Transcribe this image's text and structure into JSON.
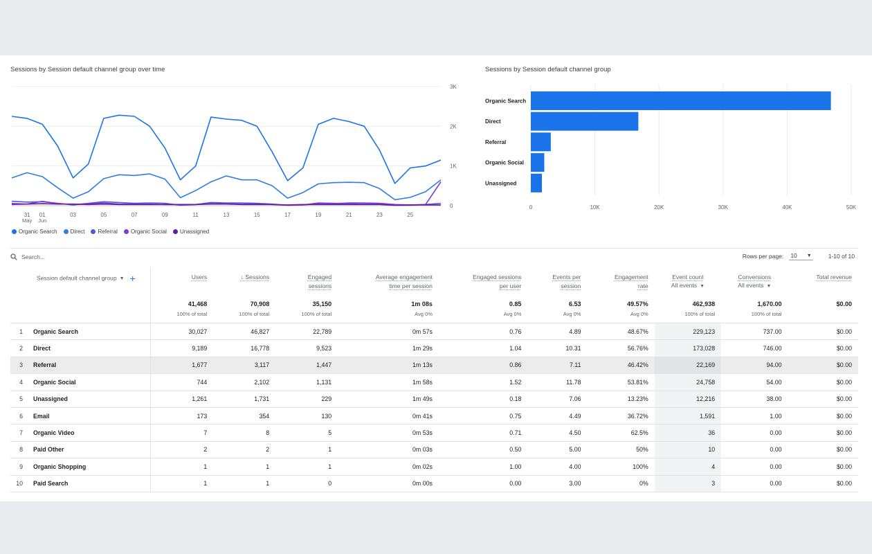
{
  "line_chart": {
    "title": "Sessions by Session default channel group over time",
    "chart_data": {
      "type": "line",
      "x": [
        "May 30",
        "May 31",
        "Jun 01",
        "Jun 02",
        "Jun 03",
        "Jun 04",
        "Jun 05",
        "Jun 06",
        "Jun 07",
        "Jun 08",
        "Jun 09",
        "Jun 10",
        "Jun 11",
        "Jun 12",
        "Jun 13",
        "Jun 14",
        "Jun 15",
        "Jun 16",
        "Jun 17",
        "Jun 18",
        "Jun 19",
        "Jun 20",
        "Jun 21",
        "Jun 22",
        "Jun 23",
        "Jun 24",
        "Jun 25",
        "Jun 26",
        "Jun 27"
      ],
      "x_ticks": [
        {
          "label": "31",
          "sub": "May"
        },
        {
          "label": "01",
          "sub": "Jun"
        },
        {
          "label": "03"
        },
        {
          "label": "05"
        },
        {
          "label": "07"
        },
        {
          "label": "09"
        },
        {
          "label": "11"
        },
        {
          "label": "13"
        },
        {
          "label": "15"
        },
        {
          "label": "17"
        },
        {
          "label": "19"
        },
        {
          "label": "21"
        },
        {
          "label": "23"
        },
        {
          "label": "25"
        }
      ],
      "ylim": [
        0,
        3000
      ],
      "y_ticks": [
        "0",
        "1K",
        "2K",
        "3K"
      ],
      "series": [
        {
          "name": "Organic Search",
          "color": "#1a73e8",
          "values": [
            2250,
            2200,
            2050,
            1500,
            700,
            1050,
            2200,
            2280,
            2250,
            2000,
            1450,
            650,
            1000,
            2230,
            2180,
            2150,
            2000,
            1350,
            630,
            950,
            2050,
            2200,
            2120,
            2000,
            1400,
            560,
            950,
            1000,
            1150
          ]
        },
        {
          "name": "Direct",
          "color": "#2e7ce6",
          "values": [
            700,
            830,
            730,
            450,
            190,
            350,
            680,
            780,
            760,
            800,
            670,
            200,
            380,
            600,
            750,
            650,
            650,
            500,
            190,
            330,
            550,
            580,
            590,
            580,
            430,
            150,
            210,
            350,
            650
          ]
        },
        {
          "name": "Referral",
          "color": "#4d5bdb",
          "values": [
            110,
            90,
            100,
            60,
            20,
            60,
            100,
            80,
            60,
            70,
            60,
            10,
            30,
            80,
            70,
            70,
            60,
            40,
            10,
            20,
            70,
            60,
            50,
            40,
            40,
            10,
            10,
            30,
            60
          ]
        },
        {
          "name": "Organic Social",
          "color": "#7c3ad9",
          "values": [
            30,
            40,
            110,
            50,
            30,
            40,
            70,
            40,
            40,
            40,
            30,
            30,
            30,
            50,
            50,
            40,
            40,
            30,
            10,
            20,
            50,
            50,
            70,
            70,
            60,
            30,
            20,
            30,
            600
          ]
        },
        {
          "name": "Unassigned",
          "color": "#6a1b9a",
          "values": [
            50,
            40,
            50,
            40,
            40,
            30,
            40,
            30,
            30,
            30,
            30,
            30,
            30,
            40,
            40,
            30,
            30,
            30,
            20,
            30,
            30,
            30,
            30,
            30,
            30,
            10,
            20,
            20,
            20
          ]
        }
      ]
    }
  },
  "bar_chart": {
    "title": "Sessions by Session default channel group",
    "chart_data": {
      "type": "bar",
      "orientation": "horizontal",
      "categories": [
        "Organic Search",
        "Direct",
        "Referral",
        "Organic Social",
        "Unassigned"
      ],
      "values": [
        46827,
        16778,
        3117,
        2102,
        1731
      ],
      "xlim": [
        0,
        50000
      ],
      "x_ticks": [
        "0",
        "10K",
        "20K",
        "30K",
        "40K",
        "50K"
      ],
      "color": "#1a73e8"
    }
  },
  "search": {
    "placeholder": "Search..."
  },
  "pagination": {
    "rows_label": "Rows per page:",
    "rows_value": "10",
    "range": "1-10 of 10"
  },
  "table": {
    "dim_header": "Session default channel group",
    "columns": [
      {
        "l1": "Users",
        "l2": ""
      },
      {
        "l1": "Sessions",
        "l2": "",
        "sorted": "↓"
      },
      {
        "l1": "Engaged",
        "l2": "sessions"
      },
      {
        "l1": "Average engagement",
        "l2": "time per session"
      },
      {
        "l1": "Engaged sessions",
        "l2": "per user"
      },
      {
        "l1": "Events per",
        "l2": "session"
      },
      {
        "l1": "Engagement",
        "l2": "rate"
      },
      {
        "l1": "Event count",
        "l2": "All events"
      },
      {
        "l1": "Conversions",
        "l2": "All events"
      },
      {
        "l1": "Total revenue",
        "l2": ""
      }
    ],
    "totals": [
      {
        "v": "41,468",
        "p": "100% of total"
      },
      {
        "v": "70,908",
        "p": "100% of total"
      },
      {
        "v": "35,150",
        "p": "100% of total"
      },
      {
        "v": "1m 08s",
        "p": "Avg 0%"
      },
      {
        "v": "0.85",
        "p": "Avg 0%"
      },
      {
        "v": "6.53",
        "p": "Avg 0%"
      },
      {
        "v": "49.57%",
        "p": "Avg 0%"
      },
      {
        "v": "462,938",
        "p": "100% of total"
      },
      {
        "v": "1,670.00",
        "p": "100% of total"
      },
      {
        "v": "$0.00",
        "p": ""
      }
    ],
    "rows": [
      {
        "i": "1",
        "name": "Organic Search",
        "c": [
          "30,027",
          "46,827",
          "22,789",
          "0m 57s",
          "0.76",
          "4.89",
          "48.67%",
          "229,123",
          "737.00",
          "$0.00"
        ]
      },
      {
        "i": "2",
        "name": "Direct",
        "c": [
          "9,189",
          "16,778",
          "9,523",
          "1m 29s",
          "1.04",
          "10.31",
          "56.76%",
          "173,028",
          "746.00",
          "$0.00"
        ]
      },
      {
        "i": "3",
        "name": "Referral",
        "c": [
          "1,677",
          "3,117",
          "1,447",
          "1m 13s",
          "0.86",
          "7.11",
          "46.42%",
          "22,169",
          "94.00",
          "$0.00"
        ]
      },
      {
        "i": "4",
        "name": "Organic Social",
        "c": [
          "744",
          "2,102",
          "1,131",
          "1m 58s",
          "1.52",
          "11.78",
          "53.81%",
          "24,758",
          "54.00",
          "$0.00"
        ]
      },
      {
        "i": "5",
        "name": "Unassigned",
        "c": [
          "1,261",
          "1,731",
          "229",
          "1m 49s",
          "0.18",
          "7.06",
          "13.23%",
          "12,216",
          "38.00",
          "$0.00"
        ]
      },
      {
        "i": "6",
        "name": "Email",
        "c": [
          "173",
          "354",
          "130",
          "0m 41s",
          "0.75",
          "4.49",
          "36.72%",
          "1,591",
          "1.00",
          "$0.00"
        ]
      },
      {
        "i": "7",
        "name": "Organic Video",
        "c": [
          "7",
          "8",
          "5",
          "0m 53s",
          "0.71",
          "4.50",
          "62.5%",
          "36",
          "0.00",
          "$0.00"
        ]
      },
      {
        "i": "8",
        "name": "Paid Other",
        "c": [
          "2",
          "2",
          "1",
          "0m 03s",
          "0.50",
          "5.00",
          "50%",
          "10",
          "0.00",
          "$0.00"
        ]
      },
      {
        "i": "9",
        "name": "Organic Shopping",
        "c": [
          "1",
          "1",
          "1",
          "0m 02s",
          "1.00",
          "4.00",
          "100%",
          "4",
          "0.00",
          "$0.00"
        ]
      },
      {
        "i": "10",
        "name": "Paid Search",
        "c": [
          "1",
          "1",
          "0",
          "0m 00s",
          "0.00",
          "3.00",
          "0%",
          "3",
          "0.00",
          "$0.00"
        ]
      }
    ]
  }
}
